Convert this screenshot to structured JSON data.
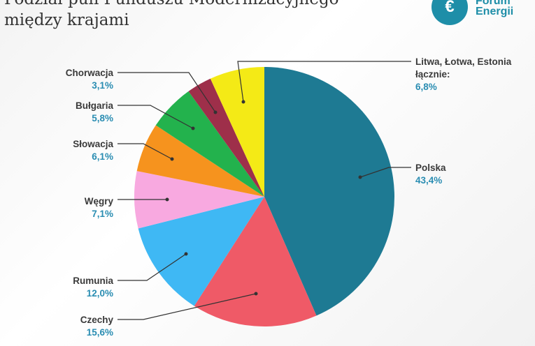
{
  "chart_data": {
    "type": "pie",
    "title": [
      "Podział puli Funduszu Modernizacyjnego",
      "między krajami"
    ],
    "logo": [
      "Forum",
      "Energii"
    ],
    "categories": [
      "Polska",
      "Czechy",
      "Rumunia",
      "Węgry",
      "Słowacja",
      "Bułgaria",
      "Chorwacja",
      "Litwa, Łotwa, Estonia łącznie:"
    ],
    "values": [
      43.4,
      15.6,
      12.0,
      7.1,
      6.1,
      5.8,
      3.1,
      6.8
    ],
    "value_labels": [
      "43,4%",
      "15,6%",
      "12,0%",
      "7,1%",
      "6,1%",
      "5,8%",
      "3,1%",
      "6,8%"
    ],
    "colors": [
      "#1e7a93",
      "#ef5a67",
      "#3fb8f4",
      "#f8a9e0",
      "#f6931e",
      "#23b24d",
      "#9e2f4a",
      "#f4ea16"
    ]
  }
}
